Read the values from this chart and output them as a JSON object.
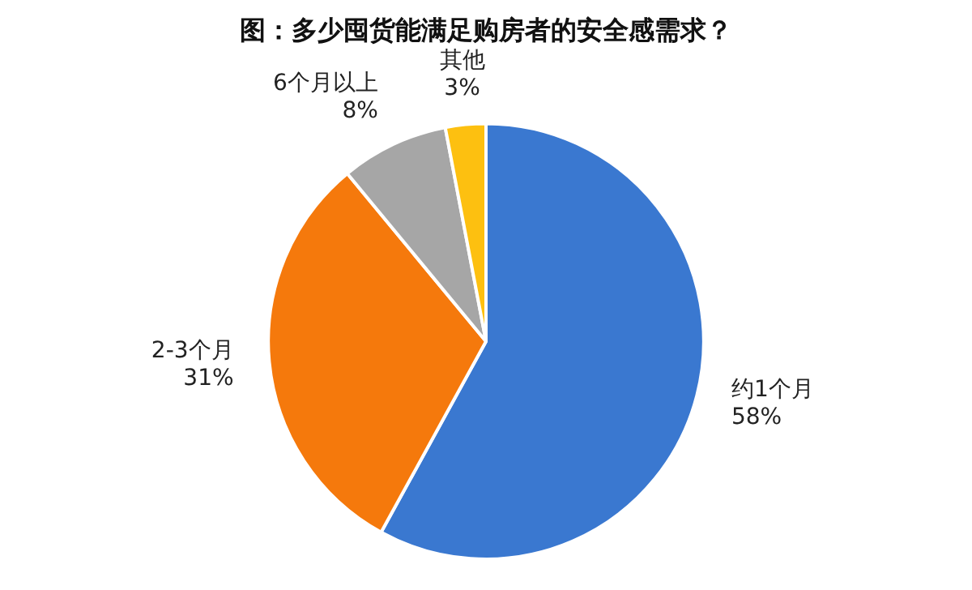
{
  "chart_data": {
    "type": "pie",
    "title": "图：多少囤货能满足购房者的安全感需求？",
    "categories": [
      "约1个月",
      "2-3个月",
      "6个月以上",
      "其他"
    ],
    "values": [
      58,
      31,
      8,
      3
    ],
    "colors": [
      "#3a78d0",
      "#f5790c",
      "#a6a6a6",
      "#fdc010"
    ],
    "value_labels": [
      "58%",
      "31%",
      "8%",
      "3%"
    ],
    "legend": false
  }
}
